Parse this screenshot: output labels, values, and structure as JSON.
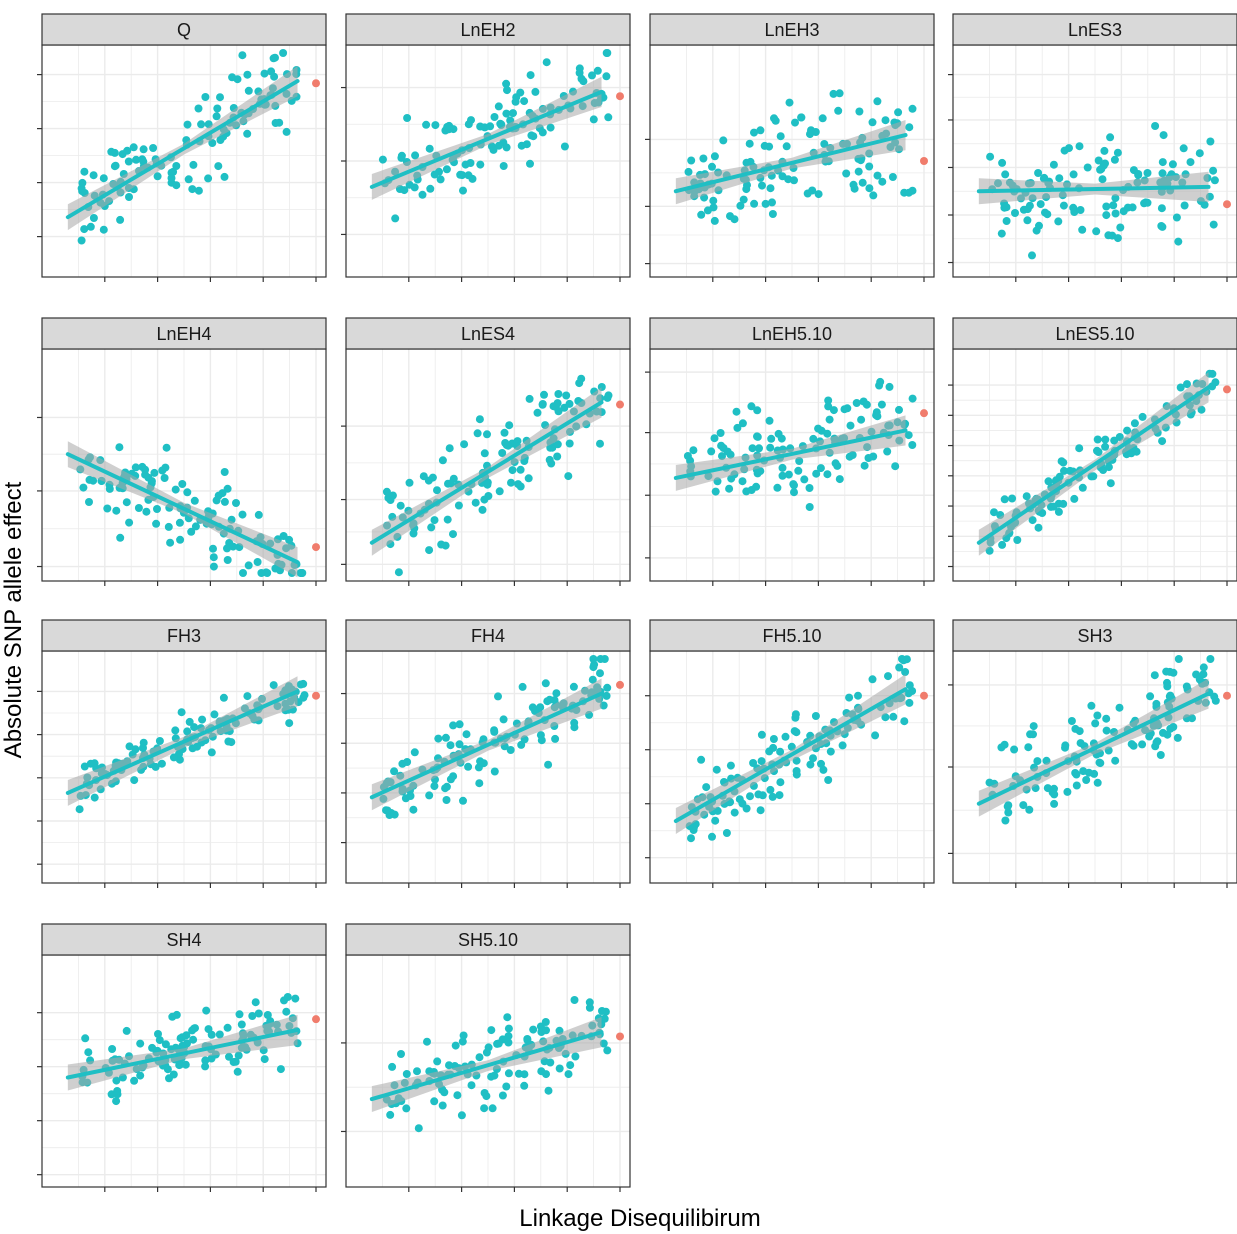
{
  "chart_data": {
    "type": "scatter",
    "facet_layout": "wrap",
    "facet_columns": 4,
    "xlabel": "Linkage Disequilibirum",
    "ylabel": "Absolute SNP allele effect",
    "tick_labels_shown": false,
    "grid": true,
    "legend": "none",
    "smooth": "linear fit with confidence band",
    "colors": {
      "points": "#1fbfc4",
      "fit_line": "#1fbfc4",
      "confidence_band": "#a8a8a8",
      "highlight_point": "#f07c6c",
      "strip_fill": "#d9d9d9",
      "grid": "#ebebeb",
      "panel_border": "#333333"
    },
    "xlim": [
      0,
      1
    ],
    "ylim": [
      0,
      1
    ],
    "panels": [
      {
        "name": "Q",
        "fit": [
          0.24,
          0.87
        ],
        "band": 0.05,
        "highlight": [
          1.0,
          0.86
        ],
        "xticks": [
          0.2,
          0.4,
          0.6,
          0.8,
          1.0
        ],
        "yticks": [
          0.15,
          0.4,
          0.65,
          0.9
        ],
        "spread": 0.16
      },
      {
        "name": "LnEH2",
        "fit": [
          0.38,
          0.82
        ],
        "band": 0.05,
        "highlight": [
          1.0,
          0.8
        ],
        "xticks": [
          0.2,
          0.4,
          0.6,
          0.8,
          1.0
        ],
        "yticks": [
          0.16,
          0.5,
          0.84
        ],
        "spread": 0.2
      },
      {
        "name": "LnEH3",
        "fit": [
          0.36,
          0.62
        ],
        "band": 0.05,
        "highlight": [
          1.0,
          0.5
        ],
        "xticks": [
          0.2,
          0.4,
          0.6,
          0.8,
          1.0
        ],
        "yticks": [
          0.025,
          0.29,
          0.6
        ],
        "spread": 0.22
      },
      {
        "name": "LnES3",
        "fit": [
          0.36,
          0.38
        ],
        "band": 0.05,
        "highlight": [
          1.0,
          0.3
        ],
        "xticks": [
          0.2,
          0.4,
          0.6,
          0.8,
          1.0
        ],
        "yticks": [
          0.03,
          0.25,
          0.47,
          0.69,
          0.9
        ],
        "spread": 0.2
      },
      {
        "name": "LnEH4",
        "fit": [
          0.55,
          0.05
        ],
        "band": 0.05,
        "highlight": [
          1.0,
          0.12
        ],
        "xticks": [
          0.2,
          0.4,
          0.6,
          0.8,
          1.0
        ],
        "yticks": [
          0.03,
          0.38,
          0.72
        ],
        "spread": 0.17
      },
      {
        "name": "LnES4",
        "fit": [
          0.14,
          0.79
        ],
        "band": 0.05,
        "highlight": [
          1.0,
          0.78
        ],
        "xticks": [
          0.2,
          0.4,
          0.6,
          0.8,
          1.0
        ],
        "yticks": [
          0.04,
          0.34,
          0.68
        ],
        "spread": 0.18
      },
      {
        "name": "LnEH5.10",
        "fit": [
          0.44,
          0.66
        ],
        "band": 0.05,
        "highlight": [
          1.0,
          0.74
        ],
        "xticks": [
          0.2,
          0.4,
          0.6,
          0.8,
          1.0
        ],
        "yticks": [
          0.07,
          0.36,
          0.65,
          0.93
        ],
        "spread": 0.2
      },
      {
        "name": "LnES5.10",
        "fit": [
          0.14,
          0.86
        ],
        "band": 0.05,
        "highlight": [
          1.0,
          0.85
        ],
        "xticks": [
          0.2,
          0.4,
          0.6,
          0.8,
          1.0
        ],
        "yticks": [
          0.03,
          0.17,
          0.31,
          0.45,
          0.59,
          0.73,
          0.87
        ],
        "spread": 0.09
      },
      {
        "name": "FH3",
        "fit": [
          0.38,
          0.85
        ],
        "band": 0.05,
        "highlight": [
          1.0,
          0.83
        ],
        "xticks": [
          0.2,
          0.4,
          0.6,
          0.8,
          1.0
        ],
        "yticks": [
          0.05,
          0.25,
          0.45,
          0.65,
          0.85
        ],
        "spread": 0.09
      },
      {
        "name": "FH4",
        "fit": [
          0.36,
          0.84
        ],
        "band": 0.05,
        "highlight": [
          1.0,
          0.88
        ],
        "xticks": [
          0.2,
          0.4,
          0.6,
          0.8,
          1.0
        ],
        "yticks": [
          0.15,
          0.38,
          0.61,
          0.84
        ],
        "spread": 0.16
      },
      {
        "name": "FH5.10",
        "fit": [
          0.25,
          0.86
        ],
        "band": 0.05,
        "highlight": [
          1.0,
          0.83
        ],
        "xticks": [
          0.2,
          0.4,
          0.6,
          0.8,
          1.0
        ],
        "yticks": [
          0.08,
          0.33,
          0.58,
          0.83
        ],
        "spread": 0.15
      },
      {
        "name": "SH3",
        "fit": [
          0.33,
          0.84
        ],
        "band": 0.05,
        "highlight": [
          1.0,
          0.83
        ],
        "xticks": [
          0.2,
          0.4,
          0.6,
          0.8,
          1.0
        ],
        "yticks": [
          0.1,
          0.5,
          0.88
        ],
        "spread": 0.16
      },
      {
        "name": "SH4",
        "fit": [
          0.47,
          0.69
        ],
        "band": 0.05,
        "highlight": [
          1.0,
          0.74
        ],
        "xticks": [
          0.2,
          0.4,
          0.6,
          0.8,
          1.0
        ],
        "yticks": [
          0.02,
          0.27,
          0.52,
          0.77
        ],
        "spread": 0.13
      },
      {
        "name": "SH5.10",
        "fit": [
          0.37,
          0.68
        ],
        "band": 0.05,
        "highlight": [
          1.0,
          0.66
        ],
        "xticks": [
          0.2,
          0.4,
          0.6,
          0.8,
          1.0
        ],
        "yticks": [
          0.22,
          0.63
        ],
        "spread": 0.16
      }
    ]
  }
}
